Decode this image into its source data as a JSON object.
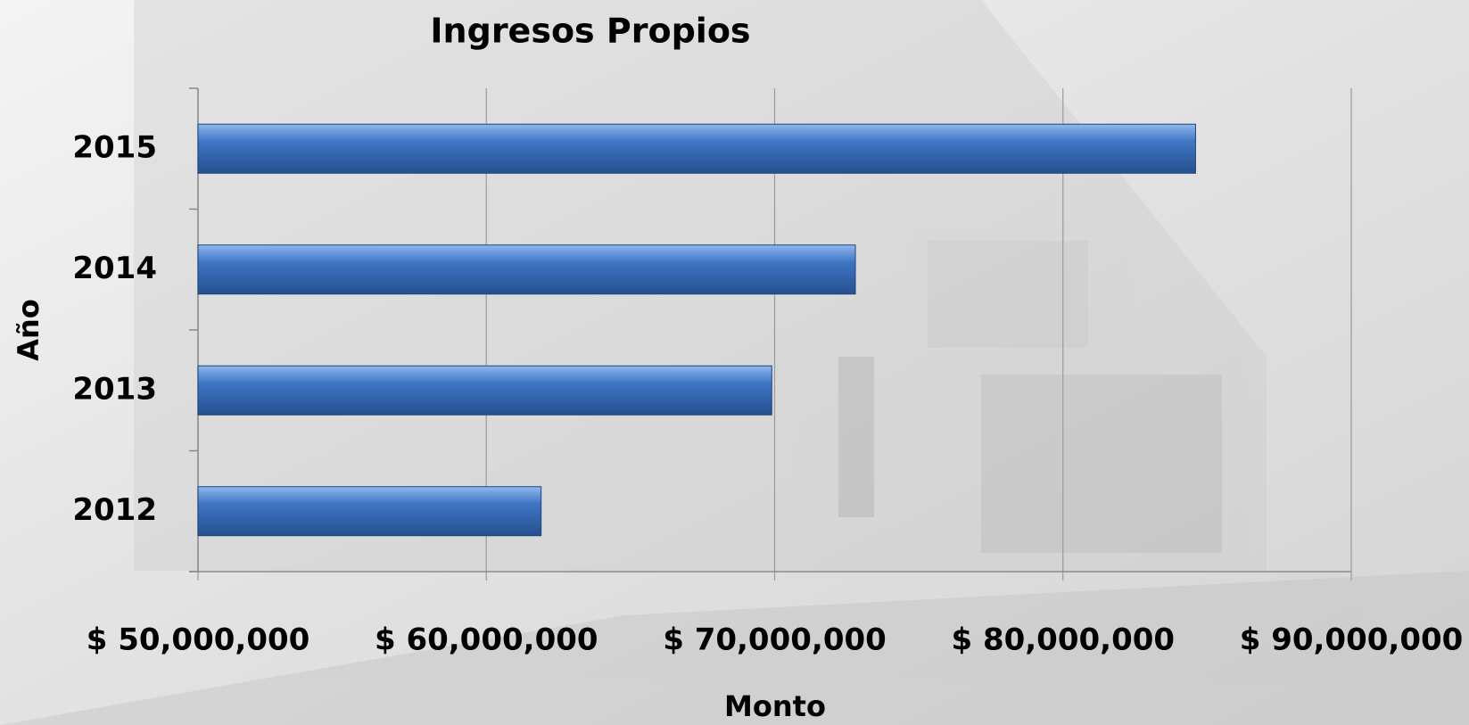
{
  "chart_data": {
    "type": "bar",
    "orientation": "horizontal",
    "title": "Ingresos Propios",
    "x_label": "Monto",
    "y_label": "Año",
    "categories": [
      "2012",
      "2013",
      "2014",
      "2015"
    ],
    "values": [
      61900000,
      69900000,
      72800000,
      84600000
    ],
    "color": "#3f76c4",
    "xlim": [
      50000000,
      90000000
    ],
    "xticks": [
      {
        "value": 50000000,
        "label": "$ 50,000,000"
      },
      {
        "value": 60000000,
        "label": "$ 60,000,000"
      },
      {
        "value": 70000000,
        "label": "$ 70,000,000"
      },
      {
        "value": 80000000,
        "label": "$ 80,000,000"
      },
      {
        "value": 90000000,
        "label": "$ 90,000,000"
      }
    ],
    "grid": true
  }
}
